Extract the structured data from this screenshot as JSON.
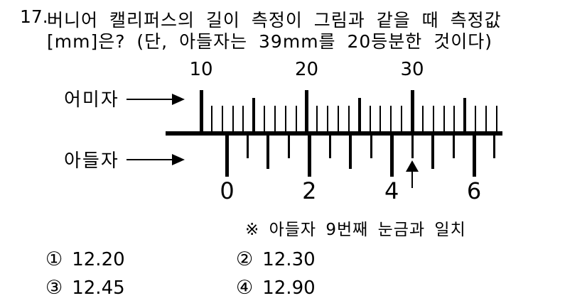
{
  "question": {
    "number": "17.",
    "line1": "버니어 캘리퍼스의 길이 측정이 그림과 같을 때 측정값",
    "line2": "[mm]은? (단, 아들자는 39mm를 20등분한 것이다)"
  },
  "diagram": {
    "main_scale": {
      "label": "어미자",
      "numbers": [
        "10",
        "20",
        "30"
      ],
      "range_mm": [
        10,
        38
      ],
      "major_every_mm": 10,
      "medium_every_mm": 5
    },
    "vernier_scale": {
      "label": "아들자",
      "numbers": [
        "0",
        "2",
        "4",
        "6"
      ],
      "tick_count": 14,
      "number_every_ticks": 4,
      "pointer_tick_index": 9
    },
    "note": "※ 아들자 9번째 눈금과 일치"
  },
  "options": [
    {
      "marker": "①",
      "value": "12.20"
    },
    {
      "marker": "②",
      "value": "12.30"
    },
    {
      "marker": "③",
      "value": "12.45"
    },
    {
      "marker": "④",
      "value": "12.90"
    }
  ]
}
